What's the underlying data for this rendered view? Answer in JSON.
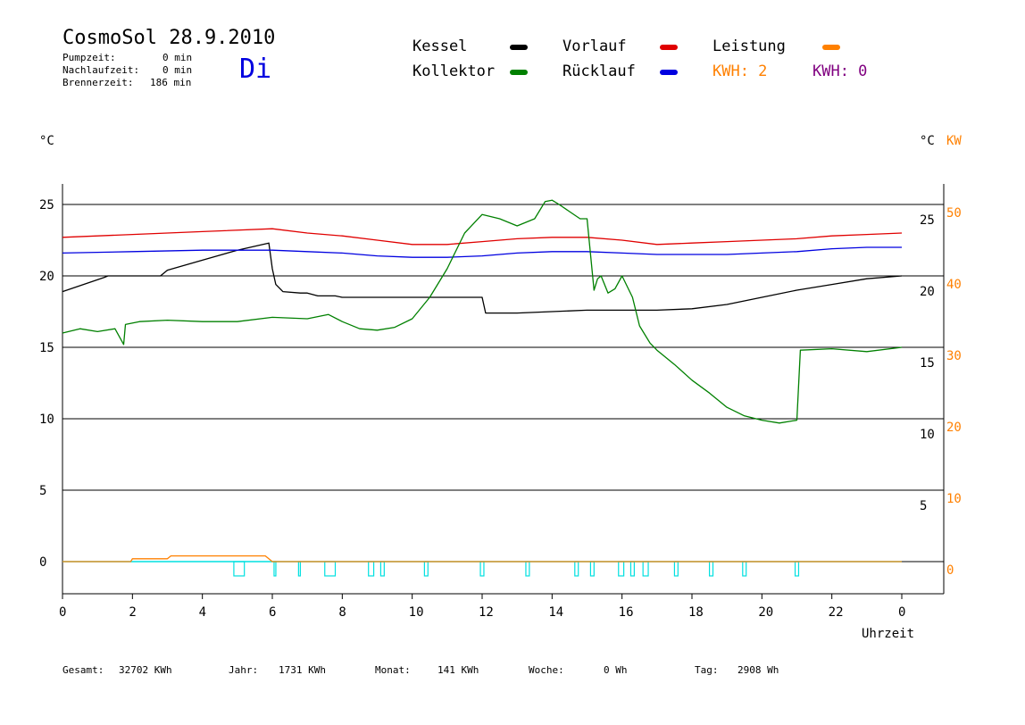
{
  "header": {
    "title": "CosmoSol 28.9.2010",
    "day": "Di",
    "pumpzeit_label": "Pumpzeit:",
    "pumpzeit_value": "0 min",
    "nachlauf_label": "Nachlaufzeit:",
    "nachlauf_value": "0 min",
    "brenner_label": "Brennerzeit:",
    "brenner_value": "186 min"
  },
  "legend": {
    "kessel": "Kessel",
    "kollektor": "Kollektor",
    "vorlauf": "Vorlauf",
    "ruecklauf": "Rücklauf",
    "leistung": "Leistung",
    "kwh1": "KWH: 2",
    "kwh2": "KWH: 0",
    "colors": {
      "kessel": "#000000",
      "kollektor": "#008000",
      "vorlauf": "#e00000",
      "ruecklauf": "#0000e0",
      "leistung": "#ff8000",
      "kwh2": "#800080",
      "pump": "#00e0e0"
    }
  },
  "axes": {
    "left_unit": "°C",
    "right_unit": "°C",
    "right_unit2": "KW",
    "x_title": "Uhrzeit"
  },
  "footer": {
    "gesamt_label": "Gesamt:",
    "gesamt_value": "32702 KWh",
    "jahr_label": "Jahr:",
    "jahr_value": "1731 KWh",
    "monat_label": "Monat:",
    "monat_value": "141 KWh",
    "woche_label": "Woche:",
    "woche_value": "0 Wh",
    "tag_label": "Tag:",
    "tag_value": "2908 Wh"
  },
  "chart_data": {
    "type": "line",
    "xlabel": "Uhrzeit",
    "ylabel": "°C",
    "xlim": [
      0,
      24
    ],
    "ylim": [
      -2,
      27.5
    ],
    "x_ticks": [
      "0",
      "2",
      "4",
      "6",
      "8",
      "10",
      "12",
      "14",
      "16",
      "18",
      "20",
      "22",
      "0"
    ],
    "y_left_ticks": [
      0,
      5,
      10,
      15,
      20,
      25
    ],
    "y_right_ticks": [
      5,
      10,
      15,
      20,
      25
    ],
    "y_kw_ticks": [
      0,
      10,
      20,
      30,
      40,
      50
    ],
    "grid": true,
    "series": [
      {
        "name": "Kessel",
        "color": "#000000",
        "x": [
          0,
          0.6,
          1.2,
          1.3,
          2.8,
          3.0,
          4.0,
          5.0,
          5.9,
          6.0,
          6.1,
          6.3,
          6.8,
          7.0,
          7.3,
          7.8,
          8.0,
          11.0,
          12.0,
          12.1,
          13.0,
          14.0,
          15.0,
          16.0,
          17.0,
          18.0,
          19.0,
          20.0,
          21.0,
          22.0,
          23.0,
          24.0
        ],
        "y": [
          18.9,
          19.4,
          19.9,
          20.0,
          20.0,
          20.4,
          21.1,
          21.8,
          22.3,
          20.5,
          19.4,
          18.9,
          18.8,
          18.8,
          18.6,
          18.6,
          18.5,
          18.5,
          18.5,
          17.4,
          17.4,
          17.5,
          17.6,
          17.6,
          17.6,
          17.7,
          18.0,
          18.5,
          19.0,
          19.4,
          19.8,
          20.0
        ]
      },
      {
        "name": "Vorlauf",
        "color": "#e00000",
        "x": [
          0,
          2,
          4,
          6,
          7,
          8,
          9,
          10,
          11,
          12,
          13,
          14,
          15,
          16,
          17,
          18,
          19,
          20,
          21,
          22,
          23,
          24
        ],
        "y": [
          22.7,
          22.9,
          23.1,
          23.3,
          23.0,
          22.8,
          22.5,
          22.2,
          22.2,
          22.4,
          22.6,
          22.7,
          22.7,
          22.5,
          22.2,
          22.3,
          22.4,
          22.5,
          22.6,
          22.8,
          22.9,
          23.0
        ]
      },
      {
        "name": "Rücklauf",
        "color": "#0000e0",
        "x": [
          0,
          2,
          4,
          6,
          7,
          8,
          9,
          10,
          11,
          12,
          13,
          14,
          15,
          16,
          17,
          18,
          19,
          20,
          21,
          22,
          23,
          24
        ],
        "y": [
          21.6,
          21.7,
          21.8,
          21.8,
          21.7,
          21.6,
          21.4,
          21.3,
          21.3,
          21.4,
          21.6,
          21.7,
          21.7,
          21.6,
          21.5,
          21.5,
          21.5,
          21.6,
          21.7,
          21.9,
          22.0,
          22.0
        ]
      },
      {
        "name": "Kollektor",
        "color": "#008000",
        "x": [
          0,
          0.5,
          1.0,
          1.5,
          1.75,
          1.8,
          2.2,
          3.0,
          4.0,
          5.0,
          6.0,
          7.0,
          7.6,
          8.0,
          8.5,
          9.0,
          9.5,
          10.0,
          10.5,
          11.0,
          11.5,
          12.0,
          12.5,
          13.0,
          13.5,
          13.8,
          14.0,
          14.2,
          14.5,
          14.8,
          15.0,
          15.2,
          15.3,
          15.4,
          15.6,
          15.8,
          16.0,
          16.3,
          16.5,
          16.8,
          17.0,
          17.5,
          18.0,
          18.5,
          19.0,
          19.5,
          20.0,
          20.5,
          21.0,
          21.1,
          22.0,
          23.0,
          24.0
        ],
        "y": [
          16.0,
          16.3,
          16.1,
          16.3,
          15.2,
          16.6,
          16.8,
          16.9,
          16.8,
          16.8,
          17.1,
          17.0,
          17.3,
          16.8,
          16.3,
          16.2,
          16.4,
          17.0,
          18.5,
          20.5,
          23.0,
          24.3,
          24.0,
          23.5,
          24.0,
          25.2,
          25.3,
          25.0,
          24.5,
          24.0,
          24.0,
          19.0,
          19.8,
          20.0,
          18.8,
          19.1,
          20.0,
          18.5,
          16.5,
          15.3,
          14.8,
          13.8,
          12.7,
          11.8,
          10.8,
          10.2,
          9.9,
          9.7,
          9.9,
          14.8,
          14.9,
          14.7,
          15.0
        ]
      },
      {
        "name": "Leistung",
        "color": "#ff8000",
        "x": [
          0,
          1.95,
          2.0,
          3.0,
          3.1,
          5.8,
          6.0,
          24.0
        ],
        "y": [
          0,
          0,
          0.2,
          0.2,
          0.4,
          0.4,
          0,
          0
        ]
      }
    ],
    "pump_pulses": [
      [
        4.9,
        5.2
      ],
      [
        6.05,
        6.1
      ],
      [
        6.75,
        6.8
      ],
      [
        7.5,
        7.8
      ],
      [
        8.75,
        8.9
      ],
      [
        9.1,
        9.2
      ],
      [
        10.35,
        10.45
      ],
      [
        11.95,
        12.05
      ],
      [
        13.25,
        13.35
      ],
      [
        14.65,
        14.75
      ],
      [
        15.1,
        15.2
      ],
      [
        15.9,
        16.05
      ],
      [
        16.25,
        16.35
      ],
      [
        16.6,
        16.75
      ],
      [
        17.5,
        17.6
      ],
      [
        18.5,
        18.6
      ],
      [
        19.45,
        19.55
      ],
      [
        20.95,
        21.05
      ]
    ]
  }
}
